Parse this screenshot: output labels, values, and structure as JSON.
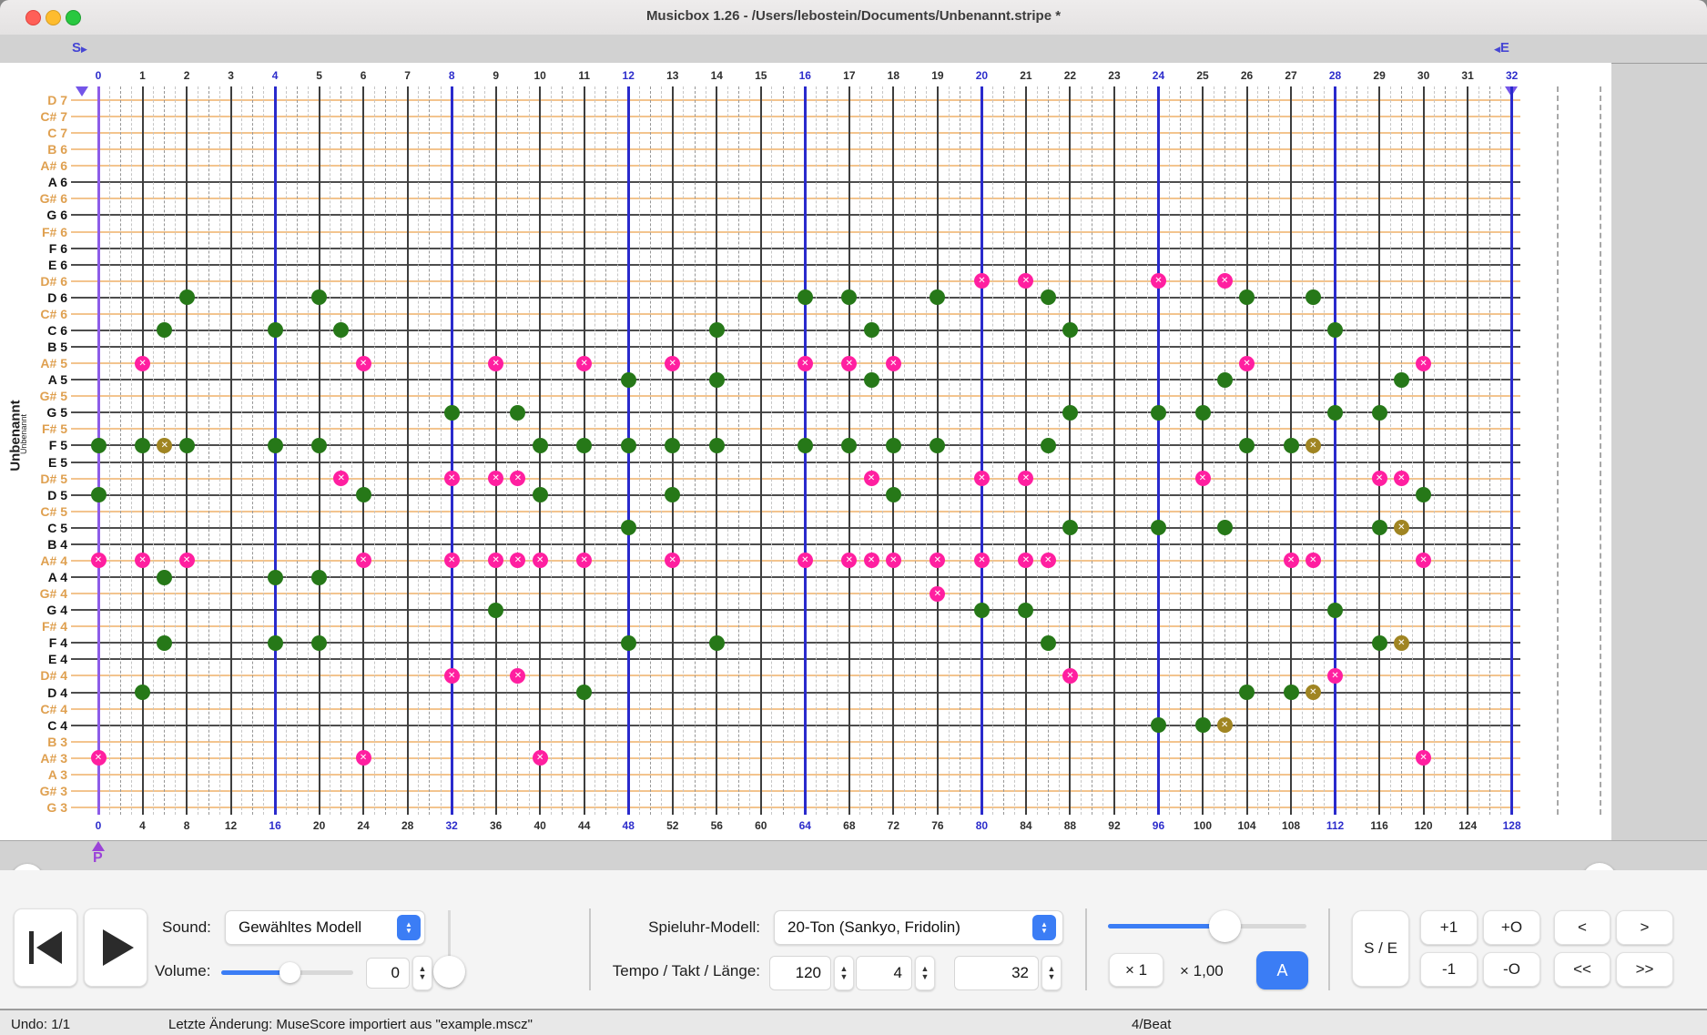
{
  "window": {
    "title": "Musicbox 1.26 - /Users/lebostein/Documents/Unbenannt.stripe *"
  },
  "side": {
    "title": "Unbenannt",
    "subtitle": "Unbenannt"
  },
  "markers": {
    "start": "S",
    "end": "E",
    "position": "P"
  },
  "rulers": {
    "measures": [
      0,
      1,
      2,
      3,
      4,
      5,
      6,
      7,
      8,
      9,
      10,
      11,
      12,
      13,
      14,
      15,
      16,
      17,
      18,
      19,
      20,
      21,
      22,
      23,
      24,
      25,
      26,
      27,
      28,
      29,
      30,
      31,
      32
    ],
    "steps": [
      0,
      4,
      8,
      12,
      16,
      20,
      24,
      28,
      32,
      36,
      40,
      44,
      48,
      52,
      56,
      60,
      64,
      68,
      72,
      76,
      80,
      84,
      88,
      92,
      96,
      100,
      104,
      108,
      112,
      116,
      120,
      124,
      128
    ]
  },
  "rows": [
    {
      "label": "D 7",
      "playable": false
    },
    {
      "label": "C# 7",
      "playable": false
    },
    {
      "label": "C 7",
      "playable": false
    },
    {
      "label": "B 6",
      "playable": false
    },
    {
      "label": "A# 6",
      "playable": false
    },
    {
      "label": "A 6",
      "playable": true
    },
    {
      "label": "G# 6",
      "playable": false
    },
    {
      "label": "G 6",
      "playable": true
    },
    {
      "label": "F# 6",
      "playable": false
    },
    {
      "label": "F 6",
      "playable": true
    },
    {
      "label": "E 6",
      "playable": true
    },
    {
      "label": "D# 6",
      "playable": false
    },
    {
      "label": "D 6",
      "playable": true
    },
    {
      "label": "C# 6",
      "playable": false
    },
    {
      "label": "C 6",
      "playable": true
    },
    {
      "label": "B 5",
      "playable": true
    },
    {
      "label": "A# 5",
      "playable": false
    },
    {
      "label": "A 5",
      "playable": true
    },
    {
      "label": "G# 5",
      "playable": false
    },
    {
      "label": "G 5",
      "playable": true
    },
    {
      "label": "F# 5",
      "playable": false
    },
    {
      "label": "F 5",
      "playable": true
    },
    {
      "label": "E 5",
      "playable": true
    },
    {
      "label": "D# 5",
      "playable": false
    },
    {
      "label": "D 5",
      "playable": true
    },
    {
      "label": "C# 5",
      "playable": false
    },
    {
      "label": "C 5",
      "playable": true
    },
    {
      "label": "B 4",
      "playable": true
    },
    {
      "label": "A# 4",
      "playable": false
    },
    {
      "label": "A 4",
      "playable": true
    },
    {
      "label": "G# 4",
      "playable": false
    },
    {
      "label": "G 4",
      "playable": true
    },
    {
      "label": "F# 4",
      "playable": false
    },
    {
      "label": "F 4",
      "playable": true
    },
    {
      "label": "E 4",
      "playable": true
    },
    {
      "label": "D# 4",
      "playable": false
    },
    {
      "label": "D 4",
      "playable": true
    },
    {
      "label": "C# 4",
      "playable": false
    },
    {
      "label": "C 4",
      "playable": true
    },
    {
      "label": "B 3",
      "playable": false
    },
    {
      "label": "A# 3",
      "playable": false
    },
    {
      "label": "A 3",
      "playable": false
    },
    {
      "label": "G# 3",
      "playable": false
    },
    {
      "label": "G 3",
      "playable": false
    }
  ],
  "note_kinds": {
    "n": "playable-note-green",
    "x": "unplayable-note-pink-cross",
    "w": "warning-note-olive-cross"
  },
  "notes": [
    [
      "D# 6",
      80,
      "x"
    ],
    [
      "D# 6",
      84,
      "x"
    ],
    [
      "D# 6",
      96,
      "x"
    ],
    [
      "D# 6",
      102,
      "x"
    ],
    [
      "D 6",
      8,
      "n"
    ],
    [
      "D 6",
      20,
      "n"
    ],
    [
      "D 6",
      64,
      "n"
    ],
    [
      "D 6",
      68,
      "n"
    ],
    [
      "D 6",
      76,
      "n"
    ],
    [
      "D 6",
      86,
      "n"
    ],
    [
      "D 6",
      104,
      "n"
    ],
    [
      "D 6",
      110,
      "n"
    ],
    [
      "C 6",
      6,
      "n"
    ],
    [
      "C 6",
      16,
      "n"
    ],
    [
      "C 6",
      22,
      "n"
    ],
    [
      "C 6",
      56,
      "n"
    ],
    [
      "C 6",
      70,
      "n"
    ],
    [
      "C 6",
      88,
      "n"
    ],
    [
      "C 6",
      112,
      "n"
    ],
    [
      "A# 5",
      4,
      "x"
    ],
    [
      "A# 5",
      24,
      "x"
    ],
    [
      "A# 5",
      36,
      "x"
    ],
    [
      "A# 5",
      44,
      "x"
    ],
    [
      "A# 5",
      52,
      "x"
    ],
    [
      "A# 5",
      64,
      "x"
    ],
    [
      "A# 5",
      68,
      "x"
    ],
    [
      "A# 5",
      72,
      "x"
    ],
    [
      "A# 5",
      104,
      "x"
    ],
    [
      "A# 5",
      120,
      "x"
    ],
    [
      "A 5",
      48,
      "n"
    ],
    [
      "A 5",
      56,
      "n"
    ],
    [
      "A 5",
      70,
      "n"
    ],
    [
      "A 5",
      102,
      "n"
    ],
    [
      "A 5",
      118,
      "n"
    ],
    [
      "G 5",
      32,
      "n"
    ],
    [
      "G 5",
      38,
      "n"
    ],
    [
      "G 5",
      88,
      "n"
    ],
    [
      "G 5",
      96,
      "n"
    ],
    [
      "G 5",
      100,
      "n"
    ],
    [
      "G 5",
      112,
      "n"
    ],
    [
      "G 5",
      116,
      "n"
    ],
    [
      "F 5",
      0,
      "n"
    ],
    [
      "F 5",
      4,
      "n"
    ],
    [
      "F 5",
      6,
      "w"
    ],
    [
      "F 5",
      8,
      "n"
    ],
    [
      "F 5",
      16,
      "n"
    ],
    [
      "F 5",
      20,
      "n"
    ],
    [
      "F 5",
      40,
      "n"
    ],
    [
      "F 5",
      44,
      "n"
    ],
    [
      "F 5",
      48,
      "n"
    ],
    [
      "F 5",
      52,
      "n"
    ],
    [
      "F 5",
      56,
      "n"
    ],
    [
      "F 5",
      64,
      "n"
    ],
    [
      "F 5",
      68,
      "n"
    ],
    [
      "F 5",
      72,
      "n"
    ],
    [
      "F 5",
      76,
      "n"
    ],
    [
      "F 5",
      86,
      "n"
    ],
    [
      "F 5",
      104,
      "n"
    ],
    [
      "F 5",
      108,
      "n"
    ],
    [
      "F 5",
      110,
      "w"
    ],
    [
      "D# 5",
      22,
      "x"
    ],
    [
      "D# 5",
      32,
      "x"
    ],
    [
      "D# 5",
      36,
      "x"
    ],
    [
      "D# 5",
      38,
      "x"
    ],
    [
      "D# 5",
      70,
      "x"
    ],
    [
      "D# 5",
      80,
      "x"
    ],
    [
      "D# 5",
      84,
      "x"
    ],
    [
      "D# 5",
      100,
      "x"
    ],
    [
      "D# 5",
      116,
      "x"
    ],
    [
      "D# 5",
      118,
      "x"
    ],
    [
      "D 5",
      0,
      "n"
    ],
    [
      "D 5",
      24,
      "n"
    ],
    [
      "D 5",
      40,
      "n"
    ],
    [
      "D 5",
      52,
      "n"
    ],
    [
      "D 5",
      72,
      "n"
    ],
    [
      "D 5",
      120,
      "n"
    ],
    [
      "C 5",
      48,
      "n"
    ],
    [
      "C 5",
      88,
      "n"
    ],
    [
      "C 5",
      96,
      "n"
    ],
    [
      "C 5",
      102,
      "n"
    ],
    [
      "C 5",
      116,
      "n"
    ],
    [
      "C 5",
      118,
      "w"
    ],
    [
      "A# 4",
      0,
      "x"
    ],
    [
      "A# 4",
      4,
      "x"
    ],
    [
      "A# 4",
      8,
      "x"
    ],
    [
      "A# 4",
      24,
      "x"
    ],
    [
      "A# 4",
      32,
      "x"
    ],
    [
      "A# 4",
      36,
      "x"
    ],
    [
      "A# 4",
      38,
      "x"
    ],
    [
      "A# 4",
      40,
      "x"
    ],
    [
      "A# 4",
      44,
      "x"
    ],
    [
      "A# 4",
      52,
      "x"
    ],
    [
      "A# 4",
      64,
      "x"
    ],
    [
      "A# 4",
      68,
      "x"
    ],
    [
      "A# 4",
      70,
      "x"
    ],
    [
      "A# 4",
      72,
      "x"
    ],
    [
      "A# 4",
      76,
      "x"
    ],
    [
      "A# 4",
      80,
      "x"
    ],
    [
      "A# 4",
      84,
      "x"
    ],
    [
      "A# 4",
      86,
      "x"
    ],
    [
      "A# 4",
      108,
      "x"
    ],
    [
      "A# 4",
      110,
      "x"
    ],
    [
      "A# 4",
      120,
      "x"
    ],
    [
      "A 4",
      6,
      "n"
    ],
    [
      "A 4",
      16,
      "n"
    ],
    [
      "A 4",
      20,
      "n"
    ],
    [
      "G# 4",
      76,
      "x"
    ],
    [
      "G 4",
      36,
      "n"
    ],
    [
      "G 4",
      80,
      "n"
    ],
    [
      "G 4",
      84,
      "n"
    ],
    [
      "G 4",
      112,
      "n"
    ],
    [
      "F 4",
      6,
      "n"
    ],
    [
      "F 4",
      16,
      "n"
    ],
    [
      "F 4",
      20,
      "n"
    ],
    [
      "F 4",
      48,
      "n"
    ],
    [
      "F 4",
      56,
      "n"
    ],
    [
      "F 4",
      86,
      "n"
    ],
    [
      "F 4",
      116,
      "n"
    ],
    [
      "F 4",
      118,
      "w"
    ],
    [
      "D# 4",
      32,
      "x"
    ],
    [
      "D# 4",
      38,
      "x"
    ],
    [
      "D# 4",
      88,
      "x"
    ],
    [
      "D# 4",
      112,
      "x"
    ],
    [
      "D 4",
      4,
      "n"
    ],
    [
      "D 4",
      44,
      "n"
    ],
    [
      "D 4",
      104,
      "n"
    ],
    [
      "D 4",
      108,
      "n"
    ],
    [
      "D 4",
      110,
      "w"
    ],
    [
      "C 4",
      96,
      "n"
    ],
    [
      "C 4",
      100,
      "n"
    ],
    [
      "C 4",
      102,
      "w"
    ],
    [
      "A# 3",
      0,
      "x"
    ],
    [
      "A# 3",
      24,
      "x"
    ],
    [
      "A# 3",
      40,
      "x"
    ],
    [
      "A# 3",
      120,
      "x"
    ]
  ],
  "sound": {
    "label": "Sound:",
    "value": "Gewähltes Modell",
    "volume_label": "Volume:",
    "volume_value": "0"
  },
  "model": {
    "label": "Spieluhr-Modell:",
    "value": "20-Ton (Sankyo, Fridolin)"
  },
  "tempo": {
    "label": "Tempo / Takt / Länge:",
    "tempo": "120",
    "takt": "4",
    "laenge": "32"
  },
  "scale": {
    "x1": "× 1",
    "x100": "× 1,00",
    "auto": "A"
  },
  "nav": {
    "se": "S / E",
    "plus1": "+1",
    "plusO": "+O",
    "minus1": "-1",
    "minusO": "-O",
    "left": "<",
    "right": ">",
    "fastleft": "<<",
    "fastright": ">>"
  },
  "status": {
    "undo": "Undo: 1/1",
    "last_change": "Letzte Änderung: MuseScore importiert aus \"example.mscz\"",
    "beat": "4/Beat"
  },
  "colors": {
    "accent": "#3b7df5",
    "note_green": "#267818",
    "note_pink": "#ff1fa0",
    "note_olive": "#a08522",
    "line_blue": "#2a2acc",
    "line_purple": "#8d5ce8",
    "row_orange": "#f3c48e",
    "label_orange": "#dfa050"
  }
}
